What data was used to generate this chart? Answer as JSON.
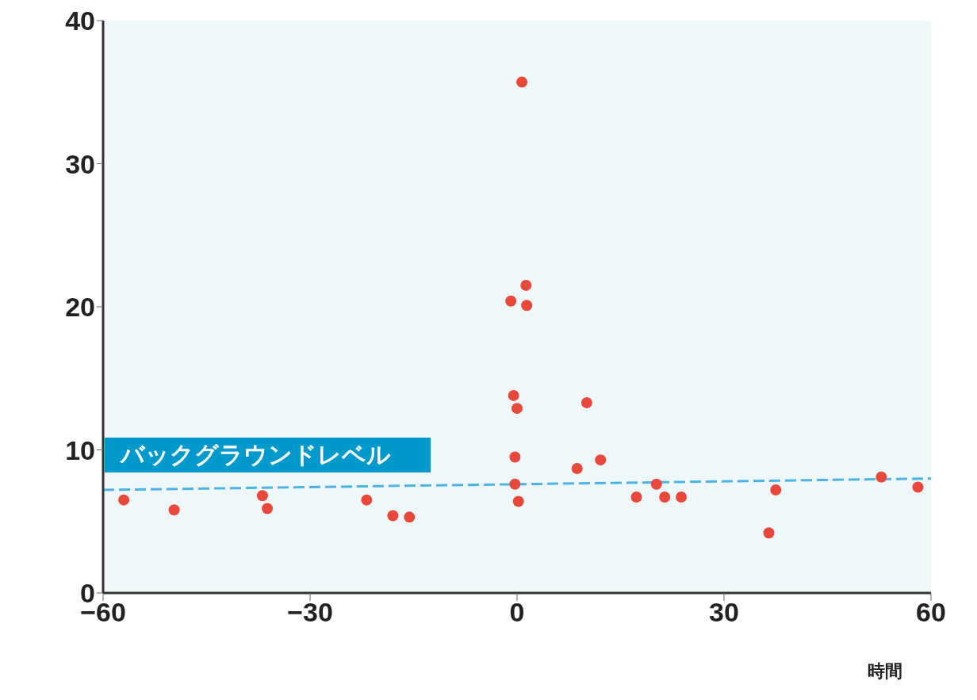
{
  "chart_data": {
    "type": "scatter",
    "xlabel": "時間",
    "xlim": [
      -60,
      60
    ],
    "xticks": [
      -60,
      -30,
      0,
      30,
      60
    ],
    "ylim": [
      0,
      40
    ],
    "yticks": [
      0,
      10,
      20,
      30,
      40
    ],
    "grid": false,
    "legend": false,
    "marker": "circle",
    "series": [
      {
        "color": "#e8483a",
        "x": [
          -57,
          -49.7,
          -36.9,
          -36.2,
          -21.8,
          -18,
          -15.6,
          -0.9,
          0.7,
          1.3,
          1.4,
          -0.5,
          0,
          -0.3,
          -0.3,
          0.2,
          10.1,
          8.7,
          12.1,
          17.3,
          20.2,
          21.4,
          23.8,
          36.5,
          37.5,
          52.8,
          58.1
        ],
        "values": [
          6.5,
          5.8,
          6.8,
          5.9,
          6.5,
          5.4,
          5.3,
          20.4,
          35.7,
          21.5,
          20.1,
          13.8,
          12.9,
          9.5,
          7.6,
          6.4,
          13.3,
          8.7,
          9.3,
          6.7,
          7.6,
          6.7,
          6.7,
          4.2,
          7.2,
          8.1,
          7.4
        ]
      },
      {
        "type": "line",
        "name": "バックグラウンドレベル",
        "color": "#4cb4e4",
        "line_style": "dashed",
        "marker": "none",
        "x": [
          -60,
          60
        ],
        "values": [
          7.2,
          8.0
        ]
      }
    ]
  }
}
